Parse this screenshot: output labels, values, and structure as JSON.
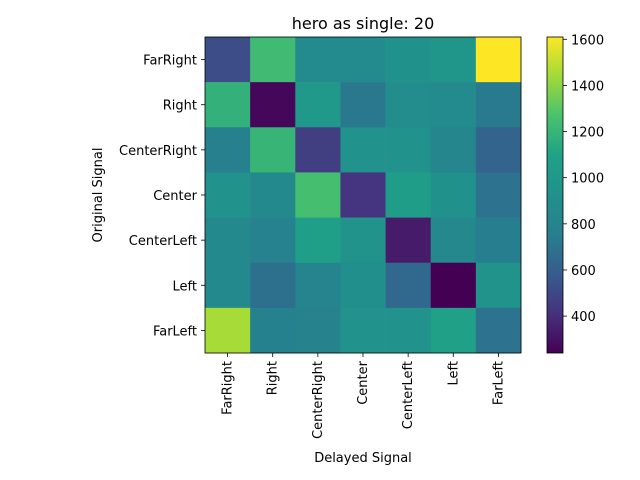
{
  "chart_data": {
    "type": "heatmap",
    "title": "hero as single: 20",
    "xlabel": "Delayed Signal",
    "ylabel": "Original Signal",
    "x_categories": [
      "FarRight",
      "Right",
      "CenterRight",
      "Center",
      "CenterLeft",
      "Left",
      "FarLeft"
    ],
    "y_categories": [
      "FarRight",
      "Right",
      "CenterRight",
      "Center",
      "CenterLeft",
      "Left",
      "FarLeft"
    ],
    "values": [
      [
        520,
        1230,
        870,
        870,
        930,
        980,
        1610
      ],
      [
        1180,
        260,
        1010,
        720,
        890,
        860,
        730
      ],
      [
        760,
        1200,
        460,
        940,
        940,
        820,
        620
      ],
      [
        940,
        850,
        1250,
        420,
        1050,
        930,
        690
      ],
      [
        850,
        780,
        1070,
        950,
        330,
        840,
        750
      ],
      [
        850,
        680,
        800,
        920,
        640,
        240,
        950
      ],
      [
        1450,
        770,
        790,
        940,
        940,
        1090,
        690
      ]
    ],
    "colormap": "viridis",
    "vmin": 240,
    "vmax": 1610,
    "colorbar_ticks": [
      400,
      600,
      800,
      1000,
      1200,
      1400,
      1600
    ]
  }
}
